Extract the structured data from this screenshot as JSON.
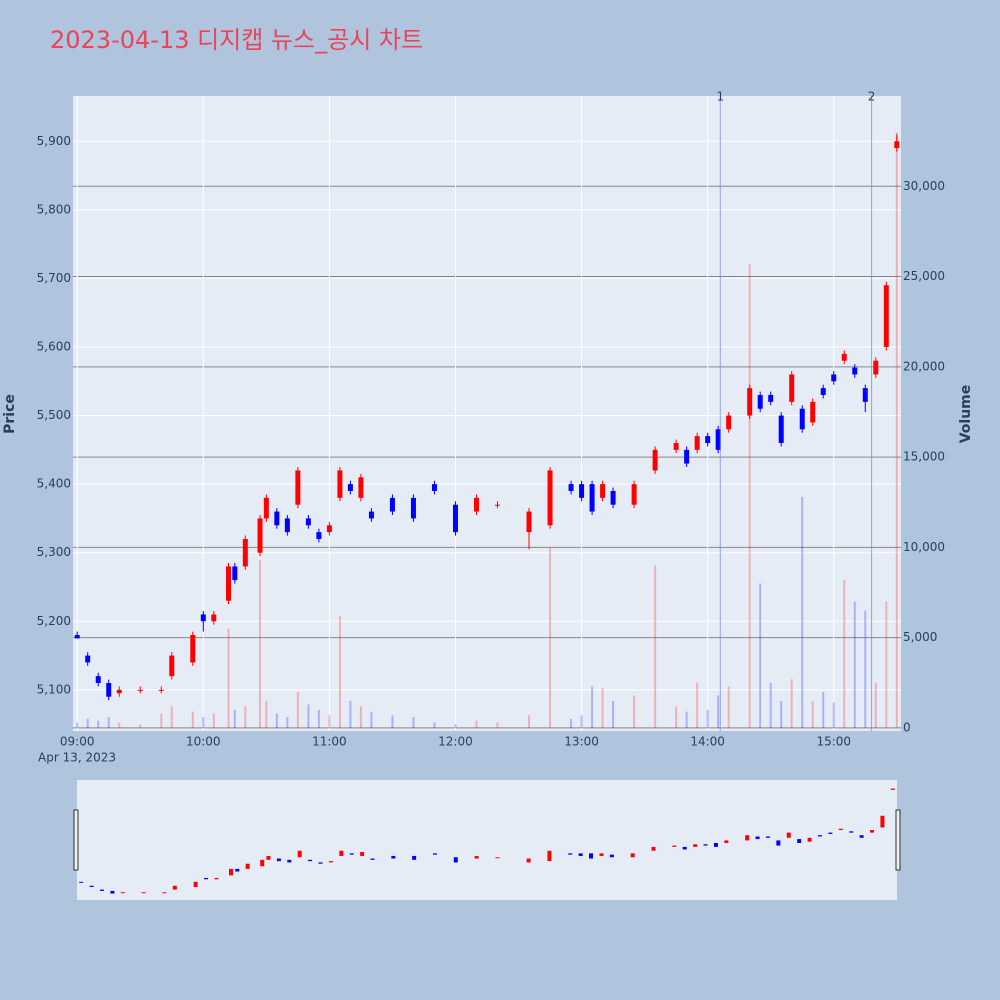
{
  "chart_data": {
    "type": "candlestick",
    "title": "2023-04-13 디지캡 뉴스_공시 차트",
    "y_label": "Price",
    "y2_label": "Volume",
    "x_date_label": "Apr 13, 2023",
    "increasing_color": "#ff0000",
    "decreasing_color": "#0000ff",
    "x": [
      "09:00",
      "09:05",
      "09:10",
      "09:15",
      "09:20",
      "09:30",
      "09:40",
      "09:45",
      "09:55",
      "10:00",
      "10:05",
      "10:12",
      "10:15",
      "10:20",
      "10:27",
      "10:30",
      "10:35",
      "10:40",
      "10:45",
      "10:50",
      "10:55",
      "11:00",
      "11:05",
      "11:10",
      "11:15",
      "11:20",
      "11:30",
      "11:40",
      "11:50",
      "12:00",
      "12:10",
      "12:20",
      "12:35",
      "12:45",
      "12:55",
      "13:00",
      "13:05",
      "13:10",
      "13:15",
      "13:25",
      "13:35",
      "13:45",
      "13:50",
      "13:55",
      "14:00",
      "14:05",
      "14:10",
      "14:20",
      "14:25",
      "14:30",
      "14:35",
      "14:40",
      "14:45",
      "14:50",
      "14:55",
      "15:00",
      "15:05",
      "15:10",
      "15:15",
      "15:20",
      "15:25",
      "15:30"
    ],
    "open": [
      5180,
      5150,
      5120,
      5110,
      5095,
      5100,
      5100,
      5120,
      5140,
      5210,
      5200,
      5230,
      5280,
      5280,
      5300,
      5350,
      5360,
      5350,
      5370,
      5350,
      5330,
      5330,
      5380,
      5400,
      5380,
      5360,
      5380,
      5380,
      5400,
      5370,
      5360,
      5370,
      5330,
      5340,
      5400,
      5400,
      5400,
      5380,
      5390,
      5370,
      5420,
      5450,
      5450,
      5450,
      5470,
      5480,
      5480,
      5500,
      5530,
      5530,
      5500,
      5520,
      5510,
      5490,
      5540,
      5560,
      5580,
      5570,
      5540,
      5560,
      5600,
      5890
    ],
    "high": [
      5185,
      5155,
      5125,
      5115,
      5105,
      5105,
      5105,
      5155,
      5185,
      5215,
      5215,
      5285,
      5285,
      5325,
      5355,
      5385,
      5365,
      5355,
      5425,
      5355,
      5335,
      5345,
      5425,
      5405,
      5415,
      5365,
      5385,
      5385,
      5405,
      5375,
      5385,
      5375,
      5365,
      5425,
      5405,
      5405,
      5405,
      5405,
      5395,
      5405,
      5455,
      5465,
      5455,
      5475,
      5475,
      5485,
      5505,
      5545,
      5535,
      5535,
      5505,
      5565,
      5515,
      5525,
      5545,
      5565,
      5595,
      5575,
      5545,
      5585,
      5695,
      5910
    ],
    "low": [
      5175,
      5135,
      5105,
      5085,
      5090,
      5095,
      5095,
      5115,
      5135,
      5185,
      5195,
      5225,
      5255,
      5275,
      5295,
      5345,
      5335,
      5325,
      5365,
      5335,
      5315,
      5325,
      5375,
      5385,
      5375,
      5345,
      5355,
      5345,
      5385,
      5325,
      5355,
      5365,
      5305,
      5335,
      5385,
      5375,
      5355,
      5375,
      5365,
      5365,
      5415,
      5445,
      5425,
      5445,
      5455,
      5445,
      5475,
      5495,
      5505,
      5515,
      5455,
      5515,
      5475,
      5485,
      5525,
      5545,
      5575,
      5555,
      5505,
      5555,
      5595,
      5885
    ],
    "close": [
      5175,
      5140,
      5110,
      5090,
      5100,
      5100,
      5100,
      5150,
      5180,
      5200,
      5210,
      5280,
      5260,
      5320,
      5350,
      5380,
      5340,
      5330,
      5420,
      5340,
      5320,
      5340,
      5420,
      5390,
      5410,
      5350,
      5360,
      5350,
      5390,
      5330,
      5380,
      5370,
      5360,
      5420,
      5390,
      5380,
      5360,
      5400,
      5370,
      5400,
      5450,
      5460,
      5430,
      5470,
      5460,
      5450,
      5500,
      5540,
      5510,
      5520,
      5460,
      5560,
      5480,
      5520,
      5530,
      5550,
      5590,
      5560,
      5520,
      5580,
      5690,
      5900
    ],
    "volume": [
      300,
      500,
      400,
      600,
      300,
      200,
      800,
      1200,
      900,
      600,
      800,
      5500,
      1000,
      1200,
      9300,
      1500,
      800,
      600,
      2000,
      1300,
      1000,
      700,
      6200,
      1500,
      1200,
      900,
      700,
      600,
      300,
      200,
      400,
      300,
      700,
      10000,
      500,
      700,
      2300,
      2200,
      1500,
      1800,
      9000,
      1200,
      900,
      2500,
      1000,
      1800,
      2300,
      25700,
      8000,
      2500,
      1500,
      2700,
      12800,
      1500,
      2000,
      1400,
      8200,
      7000,
      6500,
      2500,
      7000,
      33000
    ],
    "xlim": [
      "08:58",
      "15:32"
    ],
    "xticks": [
      "09:00",
      "10:00",
      "11:00",
      "12:00",
      "13:00",
      "14:00",
      "15:00"
    ],
    "ylim": [
      5040,
      5966
    ],
    "yticks": [
      {
        "value": 5100,
        "label": "5,100"
      },
      {
        "value": 5200,
        "label": "5,200"
      },
      {
        "value": 5300,
        "label": "5,300"
      },
      {
        "value": 5400,
        "label": "5,400"
      },
      {
        "value": 5500,
        "label": "5,500"
      },
      {
        "value": 5600,
        "label": "5,600"
      },
      {
        "value": 5700,
        "label": "5,700"
      },
      {
        "value": 5800,
        "label": "5,800"
      },
      {
        "value": 5900,
        "label": "5,900"
      }
    ],
    "y2lim": [
      -170,
      35000
    ],
    "y2ticks": [
      0,
      {
        "value": 5000,
        "label": "5,000"
      },
      {
        "value": 10000,
        "label": "10,000"
      },
      {
        "value": 15000,
        "label": "15,000"
      },
      {
        "value": 20000,
        "label": "20,000"
      },
      {
        "value": 25000,
        "label": "25,000"
      },
      {
        "value": 30000,
        "label": "30,000"
      }
    ],
    "annotations": [
      {
        "x": "14:06",
        "text": "1"
      },
      {
        "x": "15:18",
        "text": "2"
      }
    ],
    "grid": true
  }
}
